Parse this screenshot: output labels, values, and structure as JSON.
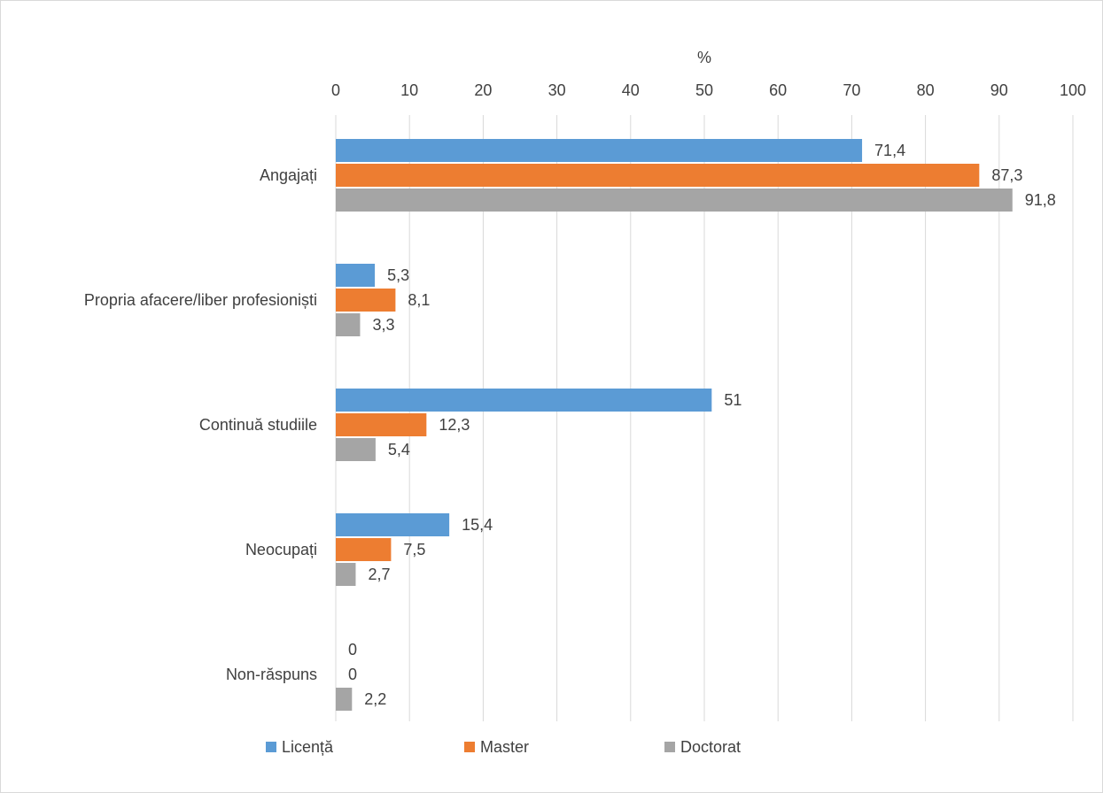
{
  "chart_data": {
    "type": "bar",
    "orientation": "horizontal",
    "axis_title": "%",
    "xlim": [
      0,
      100
    ],
    "x_ticks": [
      "0",
      "10",
      "20",
      "30",
      "40",
      "50",
      "60",
      "70",
      "80",
      "90",
      "100"
    ],
    "x_tick_values": [
      0,
      10,
      20,
      30,
      40,
      50,
      60,
      70,
      80,
      90,
      100
    ],
    "axis_position": "top",
    "grid": true,
    "legend_position": "bottom",
    "categories": [
      "Angajați",
      "Propria afacere/liber profesioniști",
      "Continuă studiile",
      "Neocupați",
      "Non-răspuns"
    ],
    "series": [
      {
        "name": "Licență",
        "color": "#5b9bd5",
        "values": [
          71.4,
          5.3,
          51,
          15.4,
          0
        ],
        "labels": [
          "71,4",
          "5,3",
          "51",
          "15,4",
          "0"
        ]
      },
      {
        "name": "Master",
        "color": "#ed7d31",
        "values": [
          87.3,
          8.1,
          12.3,
          7.5,
          0
        ],
        "labels": [
          "87,3",
          "8,1",
          "12,3",
          "7,5",
          "0"
        ]
      },
      {
        "name": "Doctorat",
        "color": "#a5a5a5",
        "values": [
          91.8,
          3.3,
          5.4,
          2.7,
          2.2
        ],
        "labels": [
          "91,8",
          "3,3",
          "5,4",
          "2,7",
          "2,2"
        ]
      }
    ]
  }
}
